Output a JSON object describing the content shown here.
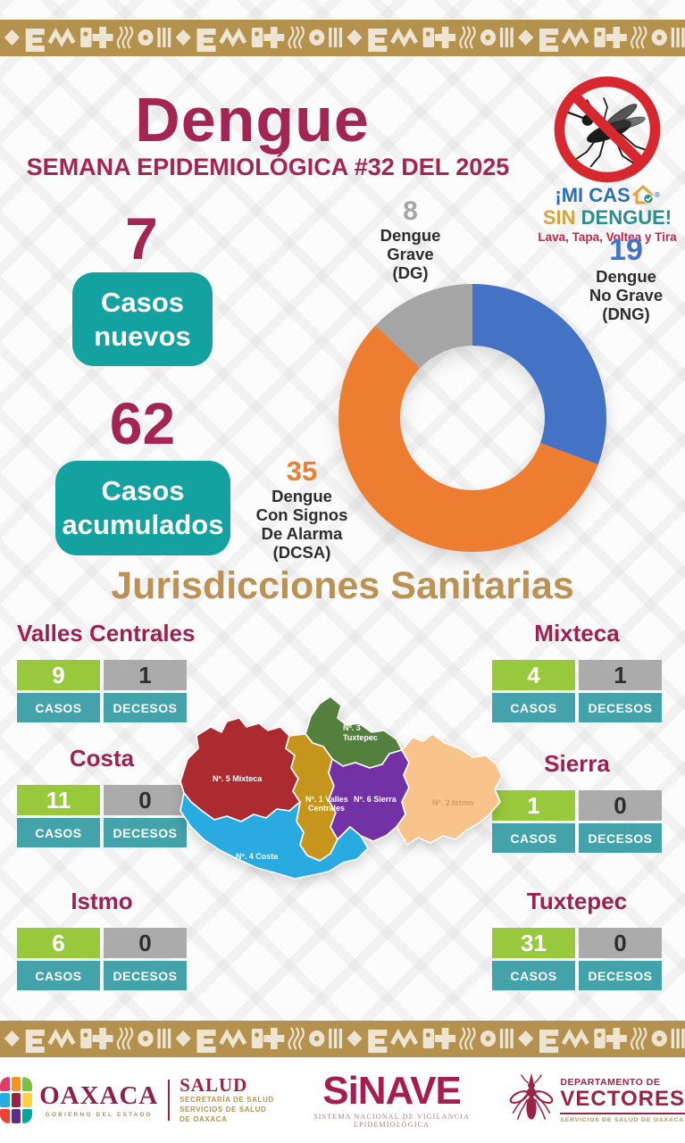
{
  "header": {
    "title": "Dengue",
    "subtitle": "SEMANA EPIDEMIOLÓGICA #32 DEL 2025"
  },
  "campaign": {
    "mi_cas": "¡MI CAS",
    "registered": "®",
    "sin": "SIN",
    "dengue": "DENGUE!",
    "tagline": "Lava, Tapa, Voltea y Tira",
    "colors": {
      "mi_cas": "#2D6FB7",
      "sin": "#D8A33F",
      "dengue": "#2F8C8C",
      "tagline": "#C5244B",
      "ban_ring": "#D7282F"
    }
  },
  "stats": {
    "new_value": "7",
    "new_label": "Casos nuevos",
    "cumulative_value": "62",
    "cumulative_label": "Casos acumulados",
    "box_color": "#13A2A0",
    "number_color": "#A32551"
  },
  "chart_data": {
    "type": "pie",
    "subtype": "donut",
    "title": "",
    "total": 62,
    "direction": "clockwise",
    "start_angle_deg": 0,
    "slices": [
      {
        "label": "Dengue No Grave (DNG)",
        "value": 19,
        "color": "#4472C4"
      },
      {
        "label": "Dengue Con Signos De Alarma (DCSA)",
        "value": 35,
        "color": "#ED7D31"
      },
      {
        "label": "Dengue Grave (DG)",
        "value": 8,
        "color": "#A5A5A5"
      }
    ]
  },
  "donut_labels": [
    {
      "value": "8",
      "lines": [
        "Dengue",
        "Grave",
        "(DG)"
      ]
    },
    {
      "value": "19",
      "lines": [
        "Dengue",
        "No Grave",
        "(DNG)"
      ]
    },
    {
      "value": "35",
      "lines": [
        "Dengue",
        "Con Signos",
        "De Alarma",
        "(DCSA)"
      ]
    }
  ],
  "jurisdictions": {
    "heading": "Jurisdicciones Sanitarias",
    "casos_label": "CASOS",
    "decesos_label": "DECESOS",
    "items": [
      {
        "name": "Valles Centrales",
        "casos": "9",
        "decesos": "1"
      },
      {
        "name": "Mixteca",
        "casos": "4",
        "decesos": "1"
      },
      {
        "name": "Costa",
        "casos": "11",
        "decesos": "0"
      },
      {
        "name": "Sierra",
        "casos": "1",
        "decesos": "0"
      },
      {
        "name": "Istmo",
        "casos": "6",
        "decesos": "0"
      },
      {
        "name": "Tuxtepec",
        "casos": "31",
        "decesos": "0"
      }
    ],
    "cell_colors": {
      "casos_bg": "#98C93C",
      "decesos_bg": "#ABABAB",
      "label_bg": "#44A2AB",
      "title": "#9D2150"
    }
  },
  "map": {
    "regions": [
      {
        "name": "Nº. 5 Mixteca",
        "color": "#AC2B31"
      },
      {
        "line1": "Nº. 3",
        "line2": "Tuxtepec",
        "color": "#53803C"
      },
      {
        "line1": "Nº. 1 Valles",
        "line2": "Centrales",
        "color": "#C6951B"
      },
      {
        "name": "Nº. 6 Sierra",
        "color": "#7331A6"
      },
      {
        "name": "Nº. 2 Istmo",
        "color": "#F9C38C",
        "label_color": "#D99A55"
      },
      {
        "name": "Nº. 4 Costa",
        "color": "#29ABE2"
      }
    ]
  },
  "footer": {
    "oaxaca": {
      "name": "OAXACA",
      "sub": "GOBIERNO DEL ESTADO"
    },
    "salud": {
      "name": "SALUD",
      "line1": "SECRETARÍA DE SALUD",
      "line2": "SERVICIOS DE SALUD DE OAXACA"
    },
    "sinave": {
      "name": "SiNAVE",
      "caption": "SISTEMA NACIONAL DE VIGILANCIA EPIDEMIOLÓGICA"
    },
    "vectores": {
      "line1": "DEPARTAMENTO DE",
      "name": "VECTORES",
      "sub": "SERVICIOS DE SALUD DE OAXACA"
    }
  },
  "theme": {
    "maroon": "#A32551",
    "gold": "#BC9254",
    "strip_bg": "#B5914E",
    "strip_glyph": "#EDE4D3"
  }
}
